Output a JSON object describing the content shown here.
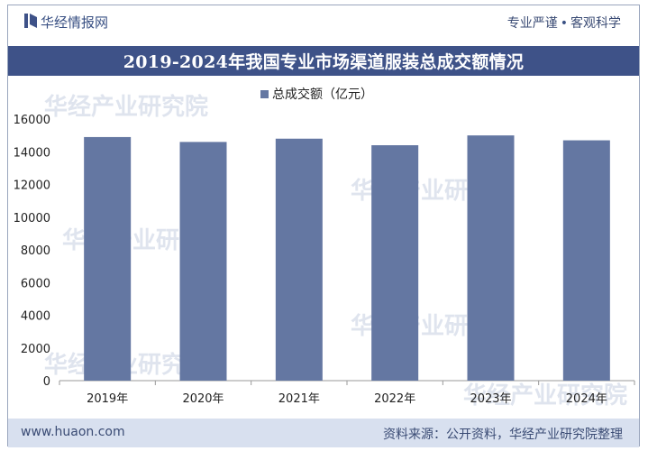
{
  "header": {
    "brand": "华经情报网",
    "tagline_left": "专业严谨",
    "tagline_sep": "•",
    "tagline_right": "客观科学"
  },
  "title": "2019-2024年我国专业市场渠道服装总成交额情况",
  "footer": {
    "website": "www.huaon.com",
    "source": "资料来源：公开资料，华经产业研究院整理"
  },
  "watermark": "华经产业研究院",
  "colors": {
    "bar": "#6477a2",
    "title_bg": "#3e5288",
    "footer_bg": "#d8e0ef"
  },
  "chart_data": {
    "type": "bar",
    "categories": [
      "2019年",
      "2020年",
      "2021年",
      "2022年",
      "2023年",
      "2024年"
    ],
    "series": [
      {
        "name": "总成交额（亿元）",
        "values": [
          14900,
          14600,
          14800,
          14400,
          15000,
          14700
        ]
      }
    ],
    "ylim": [
      0,
      16000
    ],
    "yticks": [
      0,
      2000,
      4000,
      6000,
      8000,
      10000,
      12000,
      14000,
      16000
    ],
    "legend_position": "top-center",
    "grid": false
  }
}
